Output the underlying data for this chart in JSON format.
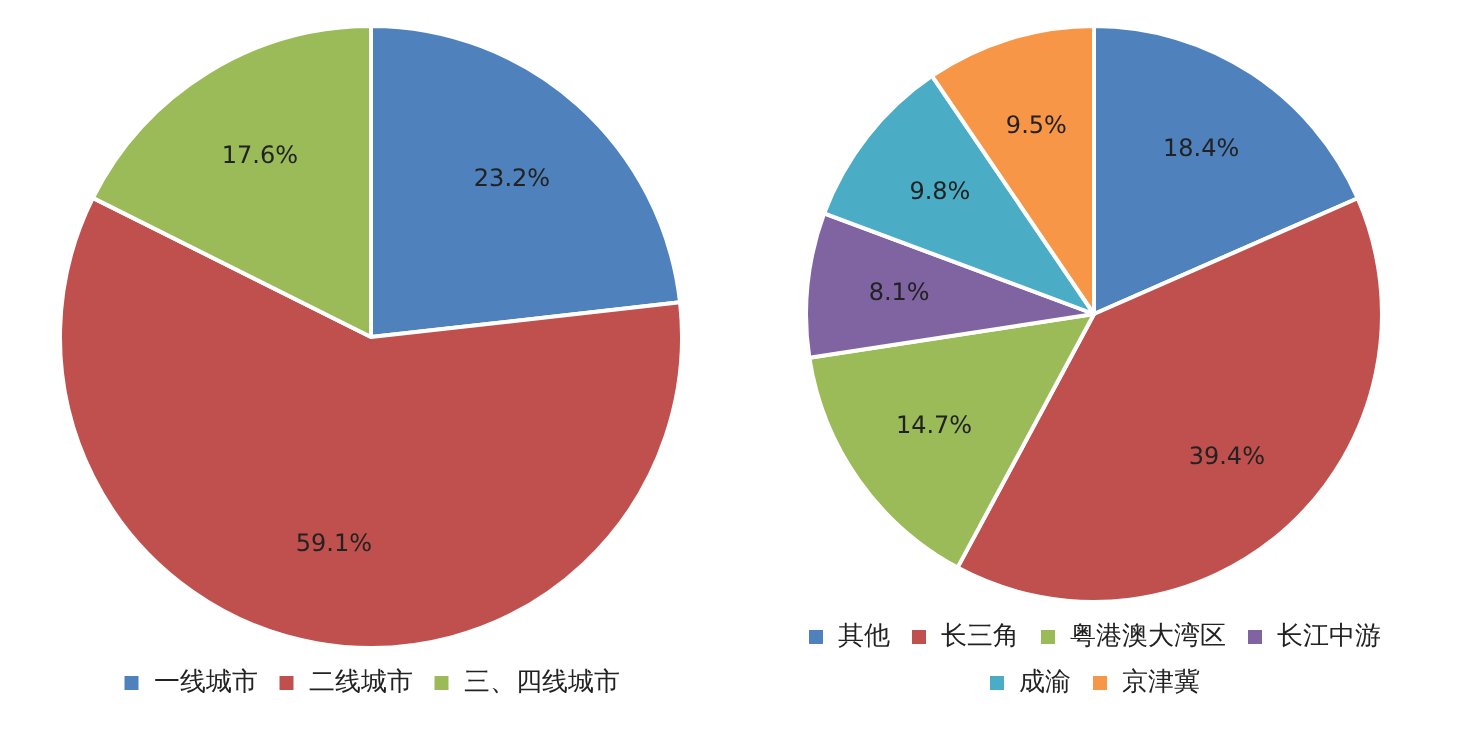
{
  "chart_data": [
    {
      "type": "pie",
      "categories": [
        "一线城市",
        "二线城市",
        "三、四线城市"
      ],
      "values": [
        23.2,
        59.1,
        17.6
      ],
      "colors": [
        "#4f81bd",
        "#c0504d",
        "#9bbb59"
      ],
      "value_labels": [
        "23.2%",
        "59.1%",
        "17.6%"
      ],
      "legend": "bottom"
    },
    {
      "type": "pie",
      "categories": [
        "其他",
        "长三角",
        "粤港澳大湾区",
        "长江中游",
        "成渝",
        "京津冀"
      ],
      "values": [
        18.4,
        39.4,
        14.7,
        8.1,
        9.8,
        9.5
      ],
      "colors": [
        "#4f81bd",
        "#c0504d",
        "#9bbb59",
        "#8064a2",
        "#4bacc6",
        "#f79646"
      ],
      "value_labels": [
        "18.4%",
        "39.4%",
        "14.7%",
        "8.1%",
        "9.8%",
        "9.5%"
      ],
      "legend": "bottom"
    }
  ]
}
